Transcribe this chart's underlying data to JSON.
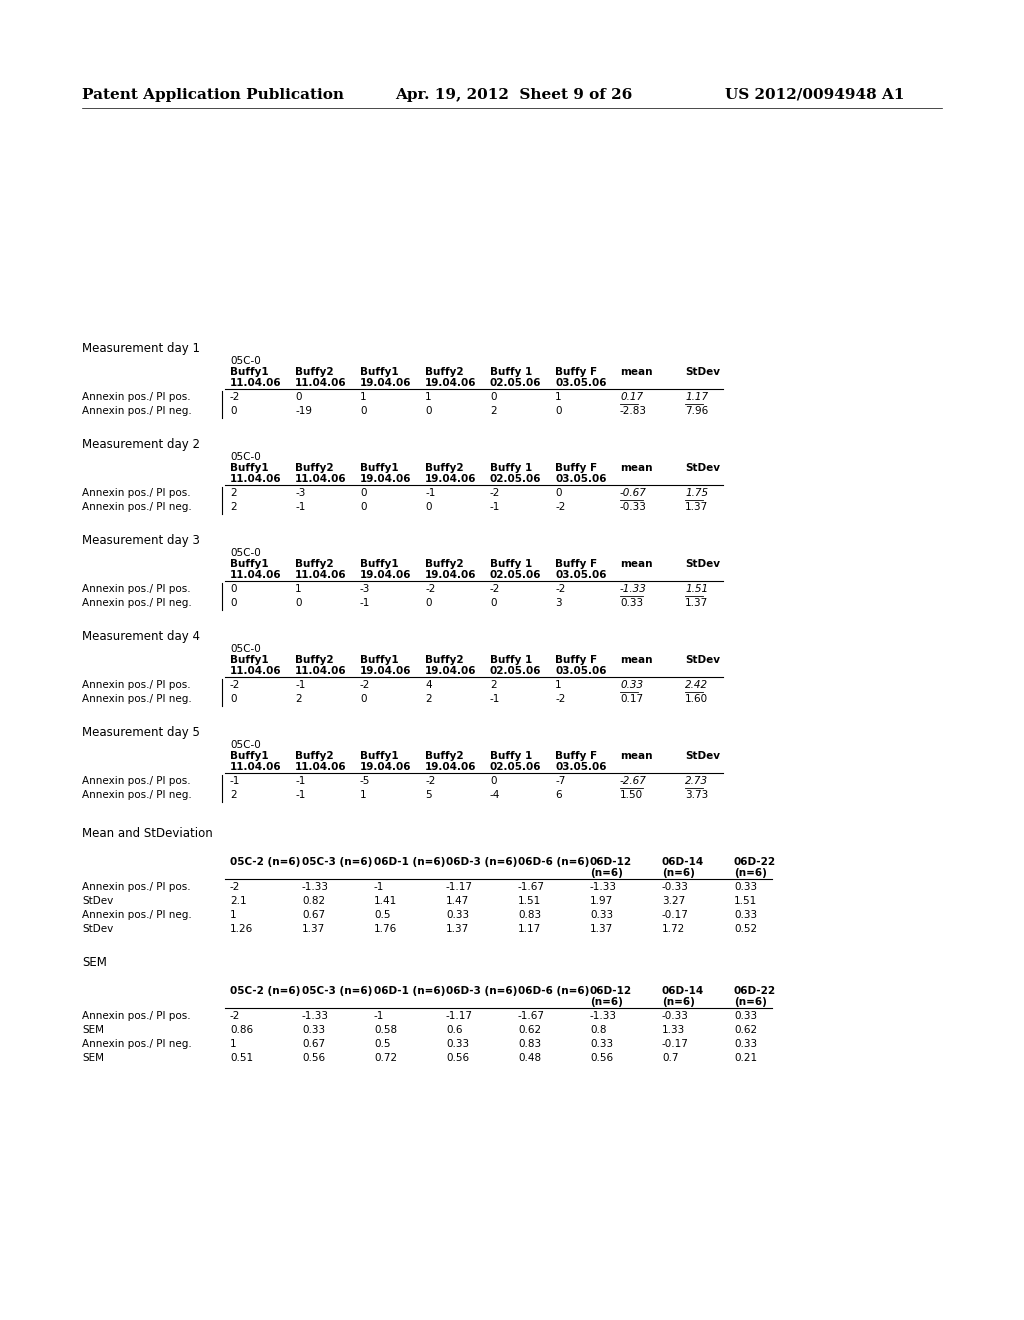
{
  "header_left": "Patent Application Publication",
  "header_mid": "Apr. 19, 2012  Sheet 9 of 26",
  "header_right": "US 2012/0094948 A1",
  "bg_color": "#ffffff",
  "tables": [
    {
      "title": "Measurement day 1",
      "sub_header": "05C-0",
      "col_headers_line1": [
        "",
        "Buffy1",
        "Buffy2",
        "Buffy1",
        "Buffy2",
        "Buffy 1",
        "Buffy F",
        "mean",
        "StDev"
      ],
      "col_headers_line2": [
        "",
        "11.04.06",
        "11.04.06",
        "19.04.06",
        "19.04.06",
        "02.05.06",
        "03.05.06",
        "",
        ""
      ],
      "rows": [
        [
          "Annexin pos./ PI pos.",
          "-2",
          "0",
          "1",
          "1",
          "0",
          "1",
          "0.17",
          "1.17"
        ],
        [
          "Annexin pos./ PI neg.",
          "0",
          "-19",
          "0",
          "0",
          "2",
          "0",
          "-2.83",
          "7.96"
        ]
      ],
      "underline_row": [
        0
      ]
    },
    {
      "title": "Measurement day 2",
      "sub_header": "05C-0",
      "col_headers_line1": [
        "",
        "Buffy1",
        "Buffy2",
        "Buffy1",
        "Buffy2",
        "Buffy 1",
        "Buffy F",
        "mean",
        "StDev"
      ],
      "col_headers_line2": [
        "",
        "11.04.06",
        "11.04.06",
        "19.04.06",
        "19.04.06",
        "02.05.06",
        "03.05.06",
        "",
        ""
      ],
      "rows": [
        [
          "Annexin pos./ PI pos.",
          "2",
          "-3",
          "0",
          "-1",
          "-2",
          "0",
          "-0.67",
          "1.75"
        ],
        [
          "Annexin pos./ PI neg.",
          "2",
          "-1",
          "0",
          "0",
          "-1",
          "-2",
          "-0.33",
          "1.37"
        ]
      ],
      "underline_row": [
        0
      ]
    },
    {
      "title": "Measurement day 3",
      "sub_header": "05C-0",
      "col_headers_line1": [
        "",
        "Buffy1",
        "Buffy2",
        "Buffy1",
        "Buffy2",
        "Buffy 1",
        "Buffy F",
        "mean",
        "StDev"
      ],
      "col_headers_line2": [
        "",
        "11.04.06",
        "11.04.06",
        "19.04.06",
        "19.04.06",
        "02.05.06",
        "03.05.06",
        "",
        ""
      ],
      "rows": [
        [
          "Annexin pos./ PI pos.",
          "0",
          "1",
          "-3",
          "-2",
          "-2",
          "-2",
          "-1.33",
          "1.51"
        ],
        [
          "Annexin pos./ PI neg.",
          "0",
          "0",
          "-1",
          "0",
          "0",
          "3",
          "0.33",
          "1.37"
        ]
      ],
      "underline_row": [
        0
      ]
    },
    {
      "title": "Measurement day 4",
      "sub_header": "05C-0",
      "col_headers_line1": [
        "",
        "Buffy1",
        "Buffy2",
        "Buffy1",
        "Buffy2",
        "Buffy 1",
        "Buffy F",
        "mean",
        "StDev"
      ],
      "col_headers_line2": [
        "",
        "11.04.06",
        "11.04.06",
        "19.04.06",
        "19.04.06",
        "02.05.06",
        "03.05.06",
        "",
        ""
      ],
      "rows": [
        [
          "Annexin pos./ PI pos.",
          "-2",
          "-1",
          "-2",
          "4",
          "2",
          "1",
          "0.33",
          "2.42"
        ],
        [
          "Annexin pos./ PI neg.",
          "0",
          "2",
          "0",
          "2",
          "-1",
          "-2",
          "0.17",
          "1.60"
        ]
      ],
      "underline_row": [
        0
      ]
    },
    {
      "title": "Measurement day 5",
      "sub_header": "05C-0",
      "col_headers_line1": [
        "",
        "Buffy1",
        "Buffy2",
        "Buffy1",
        "Buffy2",
        "Buffy 1",
        "Buffy F",
        "mean",
        "StDev"
      ],
      "col_headers_line2": [
        "",
        "11.04.06",
        "11.04.06",
        "19.04.06",
        "19.04.06",
        "02.05.06",
        "03.05.06",
        "",
        ""
      ],
      "rows": [
        [
          "Annexin pos./ PI pos.",
          "-1",
          "-1",
          "-5",
          "-2",
          "0",
          "-7",
          "-2.67",
          "2.73"
        ],
        [
          "Annexin pos./ PI neg.",
          "2",
          "-1",
          "1",
          "5",
          "-4",
          "6",
          "1.50",
          "3.73"
        ]
      ],
      "underline_row": [
        0
      ]
    }
  ],
  "mean_std_title": "Mean and StDeviation",
  "mean_std_col_headers_line1": [
    "",
    "05C-2 (n=6)",
    "05C-3 (n=6)",
    "06D-1 (n=6)",
    "06D-3 (n=6)",
    "06D-6 (n=6)",
    "06D-12",
    "06D-14",
    "06D-22"
  ],
  "mean_std_col_headers_line2": [
    "",
    "",
    "",
    "",
    "",
    "",
    "(n=6)",
    "(n=6)",
    "(n=6)"
  ],
  "mean_std_rows": [
    [
      "Annexin pos./ PI pos.",
      "-2",
      "-1.33",
      "-1",
      "-1.17",
      "-1.67",
      "-1.33",
      "-0.33",
      "0.33"
    ],
    [
      "StDev",
      "2.1",
      "0.82",
      "1.41",
      "1.47",
      "1.51",
      "1.97",
      "3.27",
      "1.51"
    ],
    [
      "Annexin pos./ PI neg.",
      "1",
      "0.67",
      "0.5",
      "0.33",
      "0.83",
      "0.33",
      "-0.17",
      "0.33"
    ],
    [
      "StDev",
      "1.26",
      "1.37",
      "1.76",
      "1.37",
      "1.17",
      "1.37",
      "1.72",
      "0.52"
    ]
  ],
  "sem_title": "SEM",
  "sem_col_headers_line1": [
    "",
    "05C-2 (n=6)",
    "05C-3 (n=6)",
    "06D-1 (n=6)",
    "06D-3 (n=6)",
    "06D-6 (n=6)",
    "06D-12",
    "06D-14",
    "06D-22"
  ],
  "sem_col_headers_line2": [
    "",
    "",
    "",
    "",
    "",
    "",
    "(n=6)",
    "(n=6)",
    "(n=6)"
  ],
  "sem_rows": [
    [
      "Annexin pos./ PI pos.",
      "-2",
      "-1.33",
      "-1",
      "-1.17",
      "-1.67",
      "-1.33",
      "-0.33",
      "0.33"
    ],
    [
      "SEM",
      "0.86",
      "0.33",
      "0.58",
      "0.6",
      "0.62",
      "0.8",
      "1.33",
      "0.62"
    ],
    [
      "Annexin pos./ PI neg.",
      "1",
      "0.67",
      "0.5",
      "0.33",
      "0.83",
      "0.33",
      "-0.17",
      "0.33"
    ],
    [
      "SEM",
      "0.51",
      "0.56",
      "0.72",
      "0.56",
      "0.48",
      "0.56",
      "0.7",
      "0.21"
    ]
  ]
}
